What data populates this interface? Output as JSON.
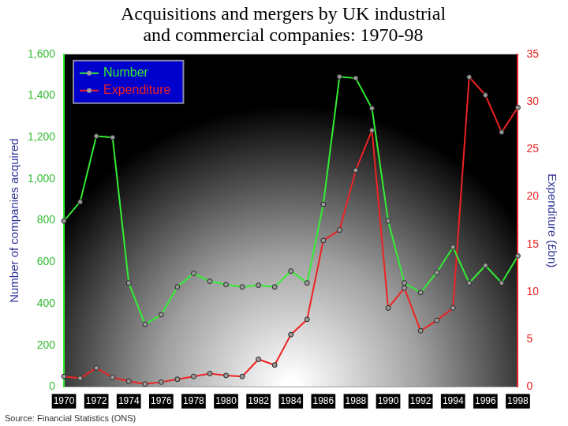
{
  "chart_data": {
    "type": "line",
    "title": "Acquisitions and mergers by UK industrial and commercial companies: 1970-98",
    "y_label": "Number of companies acquired",
    "y2_label": "Expenditure (£bn)",
    "source": "Source: Financial Statistics (ONS)",
    "categories": [
      "1970",
      null,
      "1972",
      null,
      "1974",
      null,
      "1976",
      null,
      "1978",
      null,
      "1980",
      null,
      "1982",
      null,
      "1984",
      null,
      "1986",
      null,
      "1988",
      null,
      "1990",
      null,
      "1992",
      null,
      "1994",
      null,
      "1996",
      null,
      "1998"
    ],
    "series": [
      {
        "name": "Number",
        "color": "#33ee33",
        "marker": "circle",
        "values": [
          798,
          890,
          1206,
          1200,
          500,
          301,
          347,
          481,
          546,
          508,
          492,
          481,
          489,
          481,
          557,
          500,
          878,
          1492,
          1485,
          1340,
          798,
          500,
          454,
          550,
          672,
          500,
          584,
          500,
          630
        ]
      },
      {
        "name": "Expenditure",
        "color": "#ee2222",
        "marker": "circle",
        "axis": "y2",
        "values": [
          1.1,
          0.9,
          2.0,
          1.0,
          0.6,
          0.3,
          0.5,
          0.8,
          1.1,
          1.4,
          1.2,
          1.1,
          2.9,
          2.3,
          5.5,
          7.1,
          15.4,
          16.5,
          22.8,
          27.0,
          8.3,
          10.4,
          5.9,
          7.0,
          8.3,
          32.6,
          30.7,
          26.8,
          29.4
        ]
      }
    ],
    "ylim": [
      0,
      1600
    ],
    "yticks": [
      0,
      200,
      400,
      600,
      800,
      1000,
      1200,
      1400,
      1600
    ],
    "y2lim": [
      0,
      35
    ],
    "y2ticks": [
      0,
      5,
      10,
      15,
      20,
      25,
      30,
      35
    ],
    "grid": false,
    "legend": "top-left"
  }
}
